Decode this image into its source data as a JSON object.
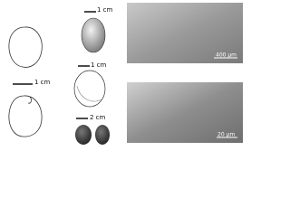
{
  "figure": {
    "left_panel": {
      "scale_label": "1 cm"
    },
    "middle_top": {
      "scale_label": "1 cm"
    },
    "middle_center": {
      "scale_label": "1 cm"
    },
    "middle_bottom": {
      "scale_label": "2 cm"
    },
    "sem_top": {
      "scale_label": "400 µm"
    },
    "sem_bottom": {
      "scale_label": "20 µm"
    }
  }
}
